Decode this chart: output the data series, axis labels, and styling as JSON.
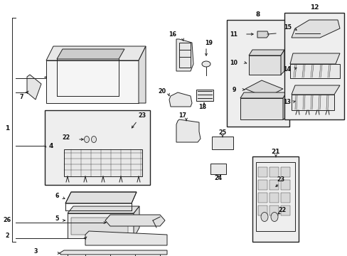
{
  "bg_color": "#ffffff",
  "fig_width": 4.89,
  "fig_height": 3.6,
  "dpi": 100,
  "label_color": "#111111",
  "line_color": "#222222",
  "box_fill": "#eeeeee",
  "label_fs": 6.5,
  "small_fs": 5.8
}
